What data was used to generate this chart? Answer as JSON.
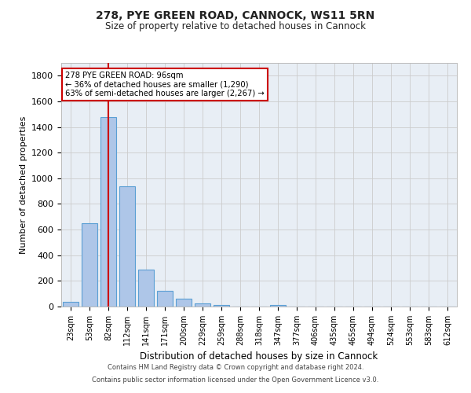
{
  "title_line1": "278, PYE GREEN ROAD, CANNOCK, WS11 5RN",
  "title_line2": "Size of property relative to detached houses in Cannock",
  "xlabel": "Distribution of detached houses by size in Cannock",
  "ylabel": "Number of detached properties",
  "bar_labels": [
    "23sqm",
    "53sqm",
    "82sqm",
    "112sqm",
    "141sqm",
    "171sqm",
    "200sqm",
    "229sqm",
    "259sqm",
    "288sqm",
    "318sqm",
    "347sqm",
    "377sqm",
    "406sqm",
    "435sqm",
    "465sqm",
    "494sqm",
    "524sqm",
    "553sqm",
    "583sqm",
    "612sqm"
  ],
  "bar_values": [
    38,
    650,
    1475,
    935,
    290,
    125,
    60,
    22,
    10,
    0,
    0,
    10,
    0,
    0,
    0,
    0,
    0,
    0,
    0,
    0,
    0
  ],
  "bar_color": "#aec6e8",
  "bar_edge_color": "#5a9fd4",
  "vline_x_index": 2,
  "vline_color": "#cc0000",
  "ylim": [
    0,
    1900
  ],
  "yticks": [
    0,
    200,
    400,
    600,
    800,
    1000,
    1200,
    1400,
    1600,
    1800
  ],
  "annotation_text": "278 PYE GREEN ROAD: 96sqm\n← 36% of detached houses are smaller (1,290)\n63% of semi-detached houses are larger (2,267) →",
  "annotation_box_color": "#ffffff",
  "annotation_box_edge": "#cc0000",
  "footer_line1": "Contains HM Land Registry data © Crown copyright and database right 2024.",
  "footer_line2": "Contains public sector information licensed under the Open Government Licence v3.0.",
  "grid_color": "#cccccc",
  "bg_color": "#e8eef5"
}
